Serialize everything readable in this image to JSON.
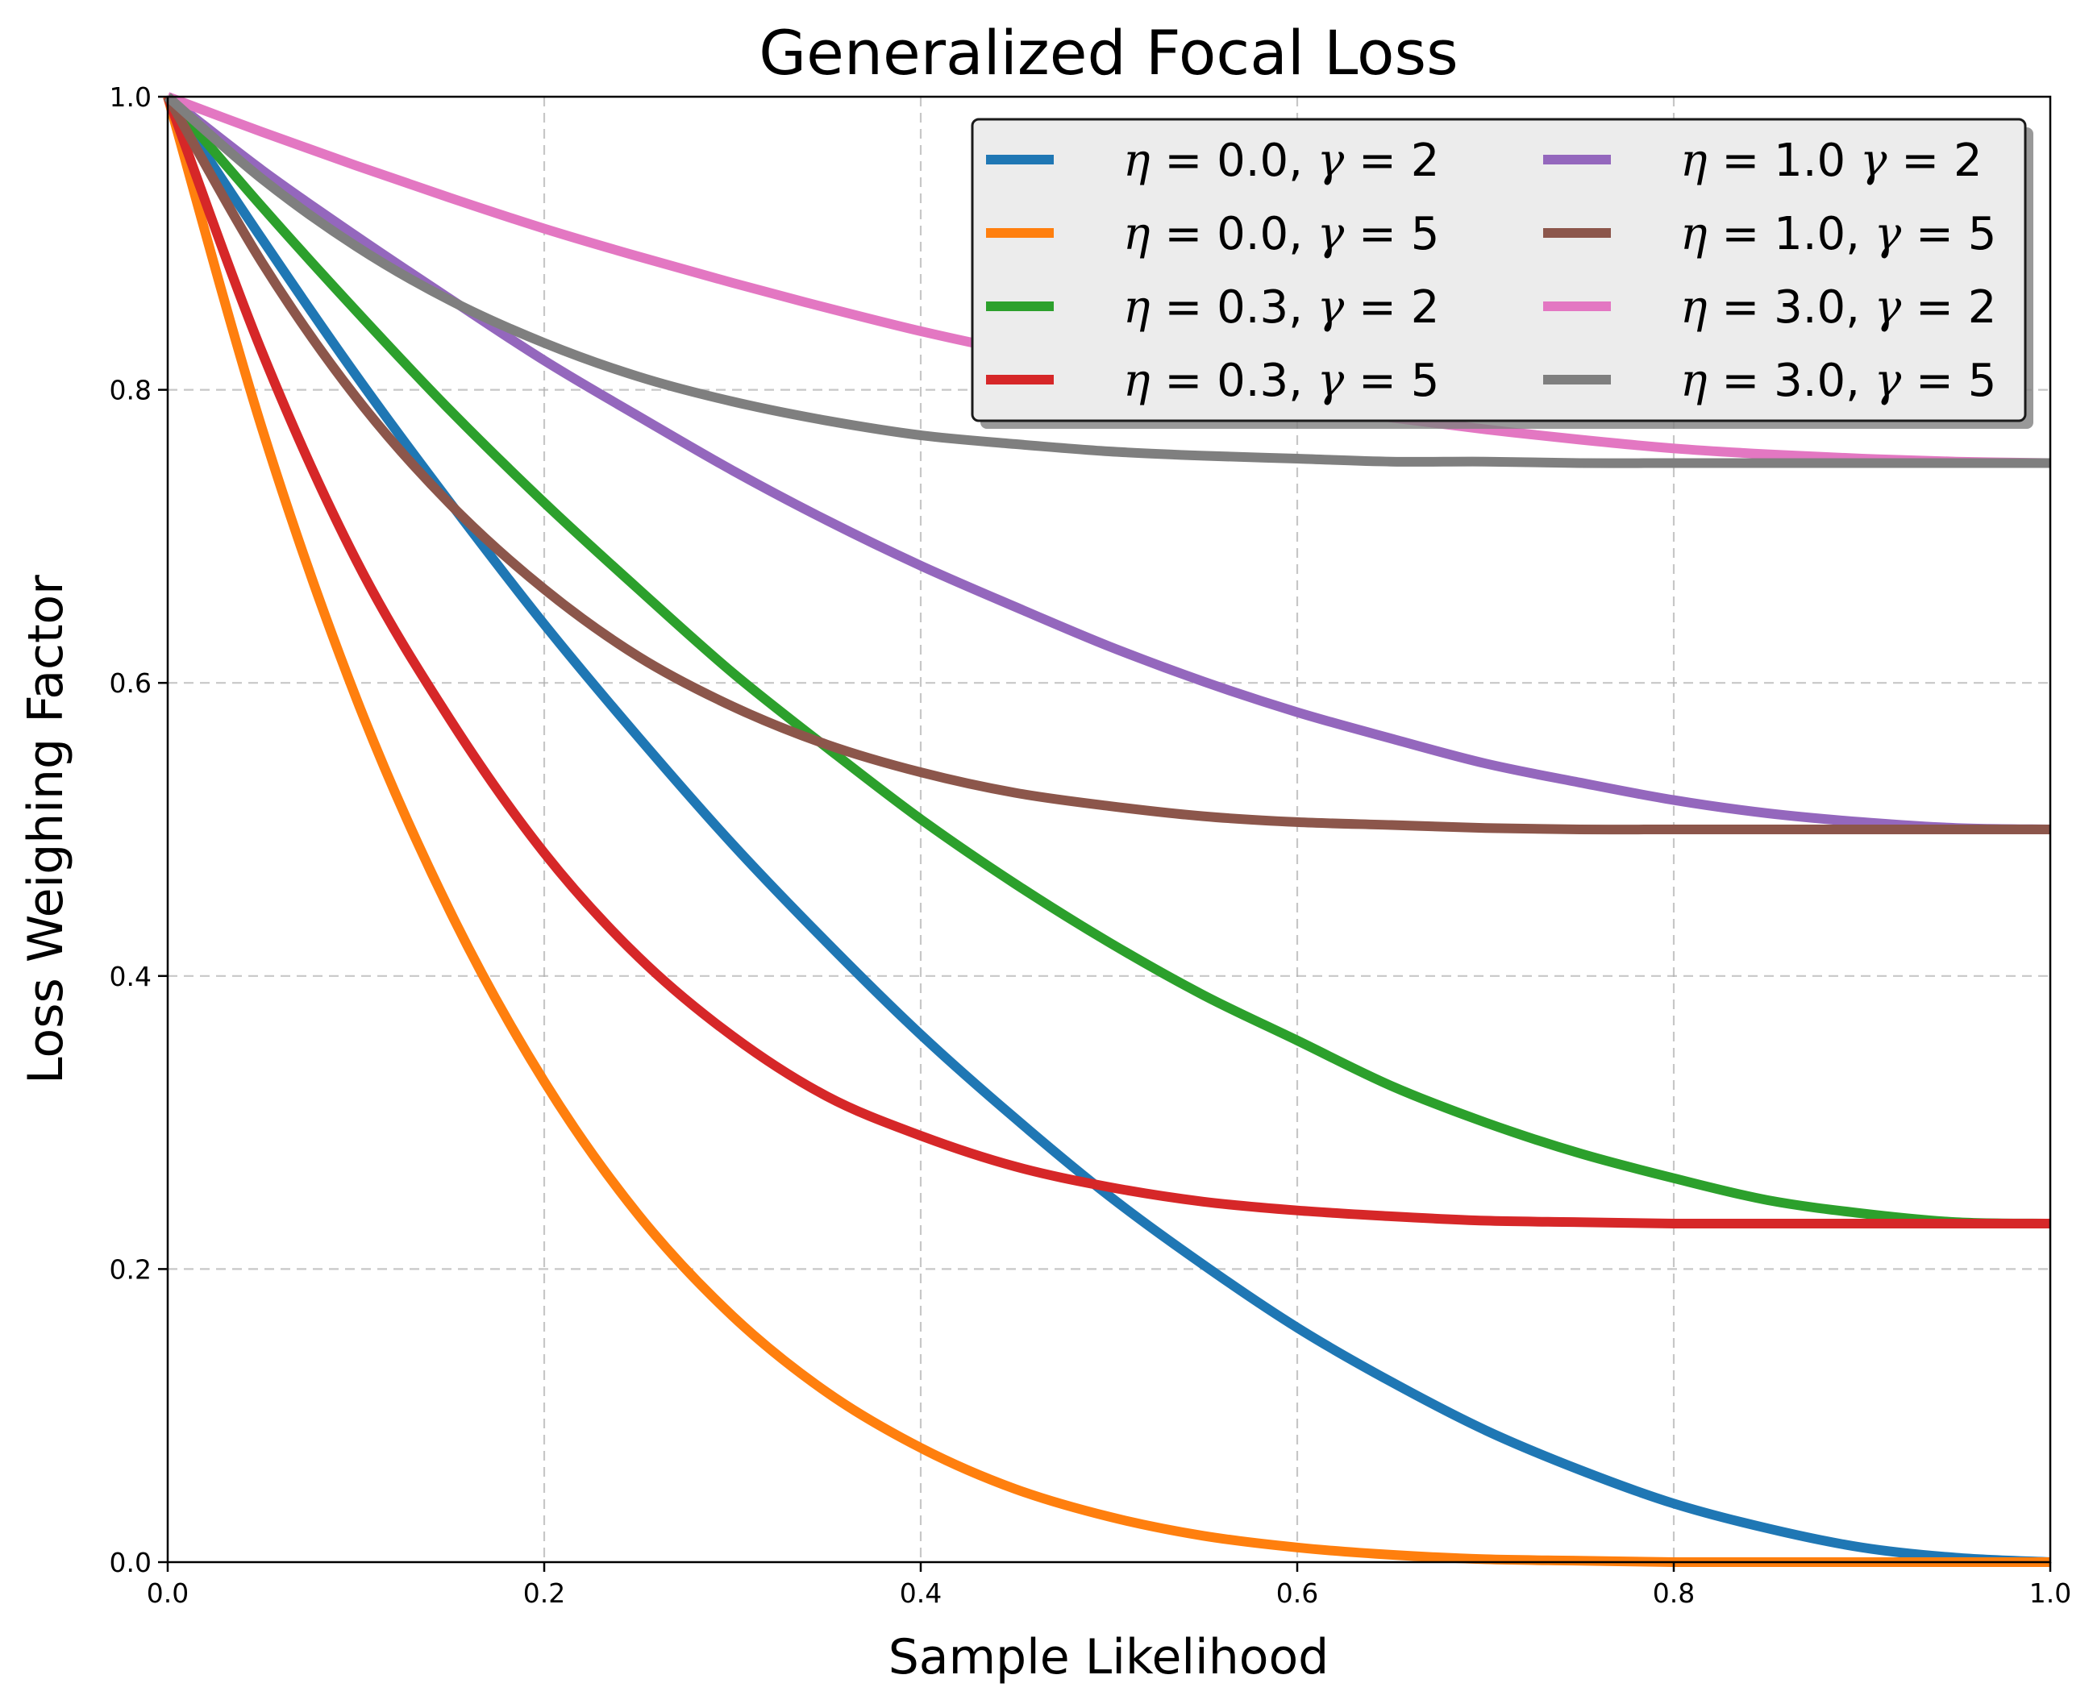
{
  "chart_data": {
    "type": "line",
    "title": "Generalized Focal Loss",
    "xlabel": "Sample Likelihood",
    "ylabel": "Loss Weighing Factor",
    "xlim": [
      0.0,
      1.0
    ],
    "ylim": [
      0.0,
      1.0
    ],
    "xticks": [
      "0.0",
      "0.2",
      "0.4",
      "0.6",
      "0.8",
      "1.0"
    ],
    "yticks": [
      "0.0",
      "0.2",
      "0.4",
      "0.6",
      "0.8",
      "1.0"
    ],
    "grid": true,
    "legend_position": "top-right",
    "legend_columns": 2,
    "x": [
      0.0,
      0.05,
      0.1,
      0.15,
      0.2,
      0.25,
      0.3,
      0.35,
      0.4,
      0.45,
      0.5,
      0.55,
      0.6,
      0.65,
      0.7,
      0.75,
      0.8,
      0.85,
      0.9,
      0.95,
      1.0
    ],
    "series": [
      {
        "label_parts": [
          [
            "sym",
            "η"
          ],
          [
            "txt",
            " = 0.0, "
          ],
          [
            "sym",
            "γ"
          ],
          [
            "txt",
            " = 2"
          ]
        ],
        "color": "#1f77b4",
        "values": [
          1.0,
          0.903,
          0.81,
          0.723,
          0.64,
          0.563,
          0.49,
          0.423,
          0.36,
          0.303,
          0.25,
          0.203,
          0.16,
          0.123,
          0.09,
          0.063,
          0.04,
          0.023,
          0.01,
          0.003,
          0.0
        ]
      },
      {
        "label_parts": [
          [
            "sym",
            "η"
          ],
          [
            "txt",
            " = 0.0, "
          ],
          [
            "sym",
            "γ"
          ],
          [
            "txt",
            " = 5"
          ]
        ],
        "color": "#ff7f0e",
        "values": [
          1.0,
          0.774,
          0.59,
          0.444,
          0.328,
          0.237,
          0.168,
          0.116,
          0.078,
          0.05,
          0.031,
          0.018,
          0.01,
          0.005,
          0.002,
          0.001,
          0.0,
          0.0,
          0.0,
          0.0,
          0.0
        ]
      },
      {
        "label_parts": [
          [
            "sym",
            "η"
          ],
          [
            "txt",
            " = 0.3, "
          ],
          [
            "sym",
            "γ"
          ],
          [
            "txt",
            " = 2"
          ]
        ],
        "color": "#2ca02c",
        "values": [
          1.0,
          0.925,
          0.854,
          0.786,
          0.723,
          0.664,
          0.607,
          0.556,
          0.507,
          0.463,
          0.423,
          0.387,
          0.356,
          0.325,
          0.3,
          0.279,
          0.262,
          0.247,
          0.238,
          0.232,
          0.231
        ]
      },
      {
        "label_parts": [
          [
            "sym",
            "η"
          ],
          [
            "txt",
            " = 0.3, "
          ],
          [
            "sym",
            "γ"
          ],
          [
            "txt",
            " = 5"
          ]
        ],
        "color": "#d62728",
        "values": [
          1.0,
          0.826,
          0.684,
          0.575,
          0.484,
          0.413,
          0.359,
          0.318,
          0.291,
          0.27,
          0.256,
          0.246,
          0.24,
          0.236,
          0.233,
          0.232,
          0.231,
          0.231,
          0.231,
          0.231,
          0.231
        ]
      },
      {
        "label_parts": [
          [
            "sym",
            "η"
          ],
          [
            "txt",
            " = 1.0 "
          ],
          [
            "sym",
            "γ"
          ],
          [
            "txt",
            " = 2"
          ]
        ],
        "color": "#9467bd",
        "values": [
          1.0,
          0.95,
          0.905,
          0.862,
          0.82,
          0.782,
          0.745,
          0.711,
          0.68,
          0.652,
          0.625,
          0.601,
          0.58,
          0.562,
          0.545,
          0.532,
          0.52,
          0.511,
          0.505,
          0.501,
          0.5
        ]
      },
      {
        "label_parts": [
          [
            "sym",
            "η"
          ],
          [
            "txt",
            " = 1.0, "
          ],
          [
            "sym",
            "γ"
          ],
          [
            "txt",
            " = 5"
          ]
        ],
        "color": "#8c564b",
        "values": [
          1.0,
          0.887,
          0.795,
          0.722,
          0.664,
          0.618,
          0.584,
          0.558,
          0.539,
          0.525,
          0.516,
          0.509,
          0.505,
          0.503,
          0.501,
          0.5,
          0.5,
          0.5,
          0.5,
          0.5,
          0.5
        ]
      },
      {
        "label_parts": [
          [
            "sym",
            "η"
          ],
          [
            "txt",
            " = 3.0, "
          ],
          [
            "sym",
            "γ"
          ],
          [
            "txt",
            " = 2"
          ]
        ],
        "color": "#e377c2",
        "values": [
          1.0,
          0.976,
          0.953,
          0.931,
          0.91,
          0.891,
          0.873,
          0.856,
          0.84,
          0.826,
          0.813,
          0.801,
          0.79,
          0.781,
          0.773,
          0.766,
          0.76,
          0.756,
          0.753,
          0.751,
          0.75
        ]
      },
      {
        "label_parts": [
          [
            "sym",
            "η"
          ],
          [
            "txt",
            " = 3.0, "
          ],
          [
            "sym",
            "γ"
          ],
          [
            "txt",
            " = 5"
          ]
        ],
        "color": "#7f7f7f",
        "values": [
          1.0,
          0.944,
          0.898,
          0.861,
          0.832,
          0.809,
          0.792,
          0.779,
          0.769,
          0.763,
          0.758,
          0.755,
          0.753,
          0.751,
          0.751,
          0.75,
          0.75,
          0.75,
          0.75,
          0.75,
          0.75
        ]
      }
    ]
  }
}
